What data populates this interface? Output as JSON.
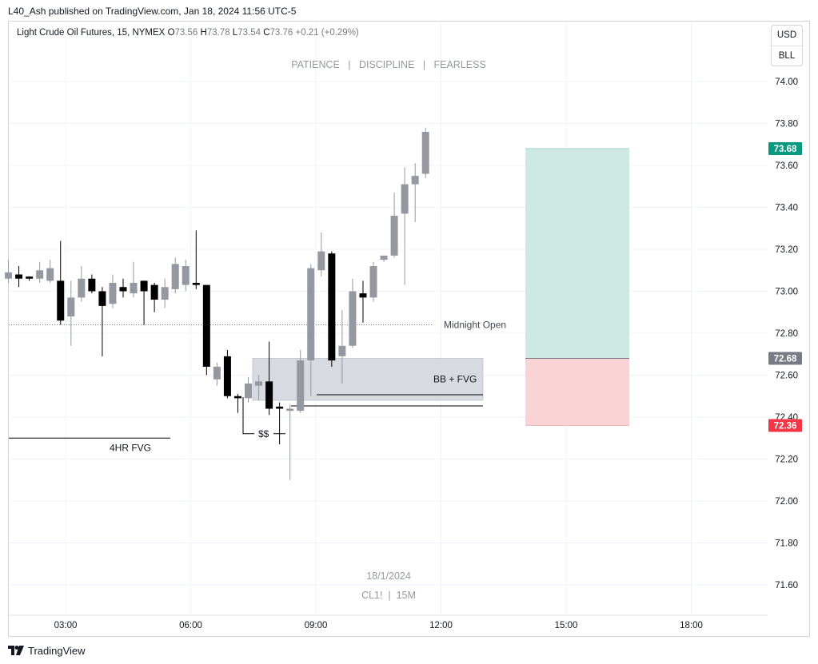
{
  "header": {
    "published_text": "L40_Ash published on TradingView.com, Jan 18, 2024 11:56 UTC-5"
  },
  "legend": {
    "symbol_text": "Light Crude Oil Futures, 15, NYMEX",
    "open_label": "O",
    "open_value": "73.56",
    "high_label": "H",
    "high_value": "73.78",
    "low_label": "L",
    "low_value": "73.54",
    "close_label": "C",
    "close_value": "73.76",
    "change_text": "+0.21 (+0.29%)"
  },
  "scale_box": {
    "currency": "USD",
    "unit": "BLL"
  },
  "watermark": {
    "top": "PATIENCE   |   DISCIPLINE   |   FEARLESS",
    "date": "18/1/2024",
    "symbol": "CL1!  |  15M"
  },
  "brand": {
    "name": "TradingView"
  },
  "colors": {
    "up_candle": "#9598a1",
    "down_candle": "#000000",
    "target_zone": "#cce9e3",
    "stop_zone": "#f9d3d6",
    "target_tag": "#089981",
    "entry_tag": "#787b86",
    "stop_tag": "#f23645",
    "grid": "#f0f3fa"
  },
  "chart_data": {
    "type": "candlestick",
    "title": "Light Crude Oil Futures, 15, NYMEX",
    "ylim": [
      71.43,
      74.2
    ],
    "y_ticks": [
      "74.00",
      "73.80",
      "73.60",
      "73.40",
      "73.20",
      "73.00",
      "72.80",
      "72.60",
      "72.40",
      "72.20",
      "72.00",
      "71.80",
      "71.60"
    ],
    "x_ticks": [
      {
        "label": "03:00",
        "hour": 3
      },
      {
        "label": "06:00",
        "hour": 6
      },
      {
        "label": "09:00",
        "hour": 9
      },
      {
        "label": "12:00",
        "hour": 12
      },
      {
        "label": "15:00",
        "hour": 15
      },
      {
        "label": "18:00",
        "hour": 18
      }
    ],
    "grid": true,
    "candles": [
      {
        "t": 1.63,
        "o": 73.06,
        "h": 73.15,
        "l": 73.04,
        "c": 73.09
      },
      {
        "t": 1.88,
        "o": 73.08,
        "h": 73.12,
        "l": 73.02,
        "c": 73.06
      },
      {
        "t": 2.13,
        "o": 73.07,
        "h": 73.07,
        "l": 73.05,
        "c": 73.06
      },
      {
        "t": 2.38,
        "o": 73.06,
        "h": 73.14,
        "l": 73.04,
        "c": 73.1
      },
      {
        "t": 2.63,
        "o": 73.05,
        "h": 73.15,
        "l": 73.04,
        "c": 73.11
      },
      {
        "t": 2.88,
        "o": 73.05,
        "h": 73.24,
        "l": 72.84,
        "c": 72.86
      },
      {
        "t": 3.13,
        "o": 72.88,
        "h": 73.05,
        "l": 72.74,
        "c": 72.97
      },
      {
        "t": 3.38,
        "o": 72.97,
        "h": 73.12,
        "l": 72.95,
        "c": 73.06
      },
      {
        "t": 3.63,
        "o": 73.06,
        "h": 73.08,
        "l": 72.99,
        "c": 73.0
      },
      {
        "t": 3.88,
        "o": 73.0,
        "h": 73.02,
        "l": 72.69,
        "c": 72.93
      },
      {
        "t": 4.13,
        "o": 72.94,
        "h": 73.08,
        "l": 72.92,
        "c": 73.04
      },
      {
        "t": 4.38,
        "o": 73.02,
        "h": 73.06,
        "l": 72.97,
        "c": 73.0
      },
      {
        "t": 4.63,
        "o": 72.99,
        "h": 73.14,
        "l": 72.97,
        "c": 73.04
      },
      {
        "t": 4.88,
        "o": 73.05,
        "h": 73.05,
        "l": 72.84,
        "c": 73.0
      },
      {
        "t": 5.13,
        "o": 73.03,
        "h": 73.04,
        "l": 72.9,
        "c": 72.96
      },
      {
        "t": 5.38,
        "o": 72.96,
        "h": 73.06,
        "l": 72.92,
        "c": 73.02
      },
      {
        "t": 5.63,
        "o": 73.01,
        "h": 73.16,
        "l": 72.99,
        "c": 73.13
      },
      {
        "t": 5.88,
        "o": 73.03,
        "h": 73.15,
        "l": 73.0,
        "c": 73.12
      },
      {
        "t": 6.13,
        "o": 73.04,
        "h": 73.29,
        "l": 73.01,
        "c": 73.03
      },
      {
        "t": 6.38,
        "o": 73.03,
        "h": 73.03,
        "l": 72.6,
        "c": 72.64
      },
      {
        "t": 6.63,
        "o": 72.58,
        "h": 72.66,
        "l": 72.55,
        "c": 72.64
      },
      {
        "t": 6.88,
        "o": 72.69,
        "h": 72.72,
        "l": 72.49,
        "c": 72.5
      },
      {
        "t": 7.13,
        "o": 72.5,
        "h": 72.51,
        "l": 72.42,
        "c": 72.49
      },
      {
        "t": 7.38,
        "o": 72.49,
        "h": 72.59,
        "l": 72.47,
        "c": 72.56
      },
      {
        "t": 7.63,
        "o": 72.55,
        "h": 72.6,
        "l": 72.48,
        "c": 72.57
      },
      {
        "t": 7.88,
        "o": 72.57,
        "h": 72.76,
        "l": 72.41,
        "c": 72.44
      },
      {
        "t": 8.13,
        "o": 72.45,
        "h": 72.47,
        "l": 72.27,
        "c": 72.44
      },
      {
        "t": 8.38,
        "o": 72.43,
        "h": 72.46,
        "l": 72.1,
        "c": 72.44
      },
      {
        "t": 8.63,
        "o": 72.43,
        "h": 72.72,
        "l": 72.42,
        "c": 72.67
      },
      {
        "t": 8.88,
        "o": 72.67,
        "h": 73.13,
        "l": 72.5,
        "c": 73.11
      },
      {
        "t": 9.13,
        "o": 73.1,
        "h": 73.28,
        "l": 73.07,
        "c": 73.19
      },
      {
        "t": 9.38,
        "o": 73.18,
        "h": 73.19,
        "l": 72.64,
        "c": 72.67
      },
      {
        "t": 9.63,
        "o": 72.69,
        "h": 72.91,
        "l": 72.56,
        "c": 72.74
      },
      {
        "t": 9.88,
        "o": 72.74,
        "h": 73.06,
        "l": 72.73,
        "c": 73.0
      },
      {
        "t": 10.13,
        "o": 72.99,
        "h": 73.05,
        "l": 72.85,
        "c": 72.97
      },
      {
        "t": 10.38,
        "o": 72.97,
        "h": 73.14,
        "l": 72.95,
        "c": 73.12
      },
      {
        "t": 10.63,
        "o": 73.15,
        "h": 73.17,
        "l": 73.14,
        "c": 73.17
      },
      {
        "t": 10.88,
        "o": 73.17,
        "h": 73.47,
        "l": 73.16,
        "c": 73.36
      },
      {
        "t": 11.13,
        "o": 73.37,
        "h": 73.59,
        "l": 73.03,
        "c": 73.51
      },
      {
        "t": 11.38,
        "o": 73.51,
        "h": 73.61,
        "l": 73.33,
        "c": 73.55
      },
      {
        "t": 11.63,
        "o": 73.56,
        "h": 73.78,
        "l": 73.54,
        "c": 73.76
      }
    ],
    "levels": [
      {
        "name": "Midnight Open",
        "price": 72.84,
        "style": "dotted"
      },
      {
        "name": "4HR FVG",
        "price": 72.3
      },
      {
        "name": "BB + FVG",
        "low": 72.48,
        "high": 72.68
      },
      {
        "name": "$$",
        "price": 72.34
      }
    ],
    "position": {
      "target": "73.68",
      "entry": "72.68",
      "stop": "72.36"
    }
  }
}
